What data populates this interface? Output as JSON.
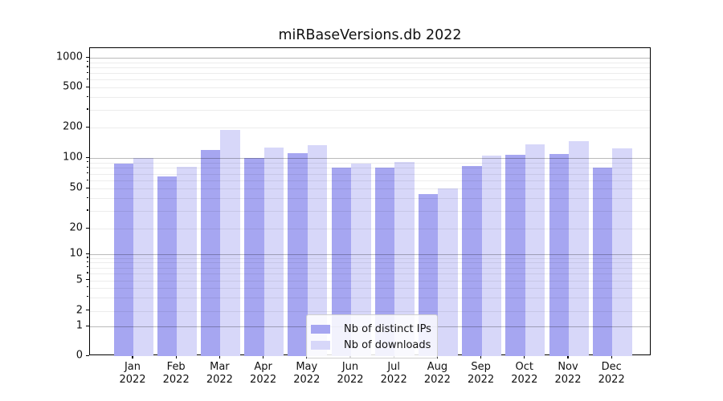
{
  "chart_data": {
    "type": "bar",
    "title": "miRBaseVersions.db 2022",
    "categories": [
      "Jan",
      "Feb",
      "Mar",
      "Apr",
      "May",
      "Jun",
      "Jul",
      "Aug",
      "Sep",
      "Oct",
      "Nov",
      "Dec"
    ],
    "category_year": "2022",
    "series": [
      {
        "name": "Nb of distinct IPs",
        "color": "#a6a6f1",
        "values": [
          88,
          66,
          120,
          100,
          112,
          80,
          80,
          44,
          83,
          107,
          110,
          80
        ]
      },
      {
        "name": "Nb of downloads",
        "color": "#d7d7f9",
        "values": [
          100,
          82,
          190,
          127,
          133,
          88,
          92,
          50,
          105,
          137,
          146,
          125
        ]
      }
    ],
    "yscale": "symlog",
    "yticks": [
      0,
      1,
      2,
      5,
      10,
      20,
      50,
      100,
      200,
      500,
      1000
    ],
    "ylim": [
      0,
      1400
    ],
    "xlabel": "",
    "ylabel": "",
    "grid": true,
    "legend_position": "bottom-center"
  },
  "colors": {
    "background": "#ffffff",
    "axis": "#000000",
    "major_grid": "#b9b9b9",
    "minor_grid": "#ececec",
    "legend_border": "#cfcfcf"
  }
}
